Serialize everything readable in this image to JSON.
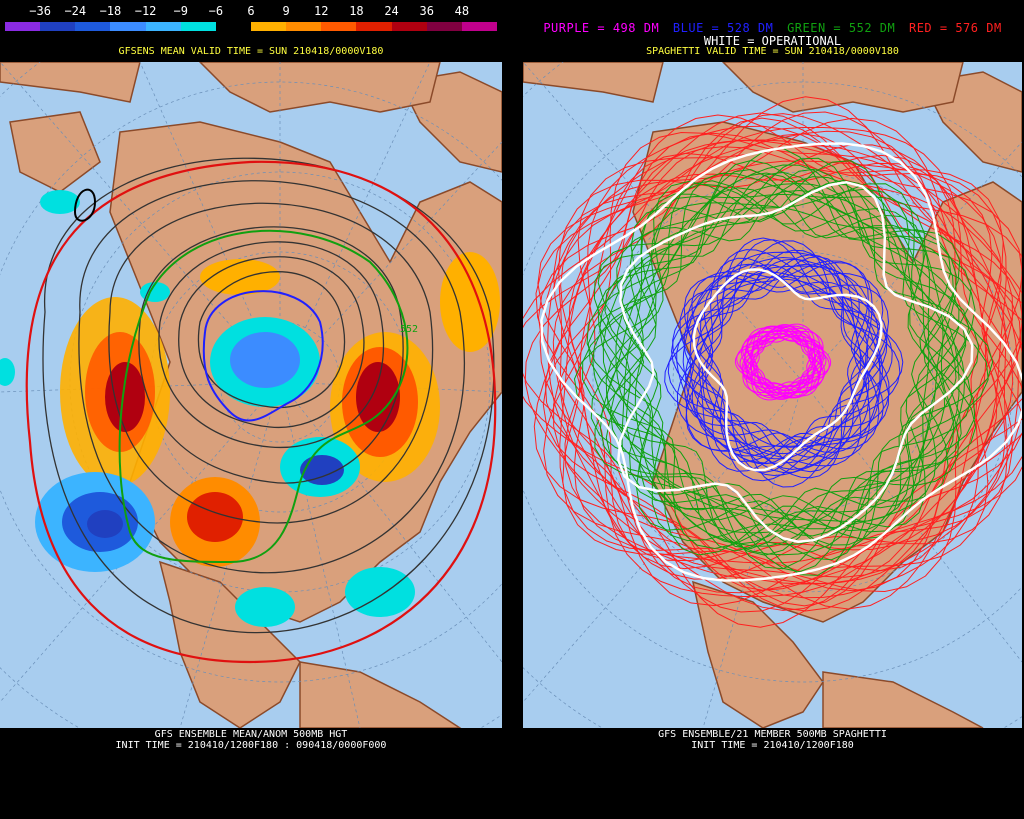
{
  "left": {
    "colorbar": {
      "labels": [
        "−36",
        "−24",
        "−18",
        "−12",
        "−9",
        "−6",
        "6",
        "9",
        "12",
        "18",
        "24",
        "36",
        "48"
      ],
      "colors": [
        "#8a2be2",
        "#2040c0",
        "#1e5adc",
        "#3c8cff",
        "#3cb4ff",
        "#00e0e0",
        "#000000",
        "#ffb000",
        "#ff8c00",
        "#ff5a00",
        "#e02000",
        "#b00010",
        "#800040",
        "#c0008c"
      ]
    },
    "title": "GFSENS MEAN VALID TIME = SUN 210418/0000V180",
    "footer_line1": "GFS ENSEMBLE MEAN/ANOM 500MB HGT",
    "footer_line2": "INIT TIME = 210410/1200F180 : 090418/0000F000",
    "contour_label": "552"
  },
  "right": {
    "legend": {
      "purple": "PURPLE = 498 DM",
      "blue": "BLUE = 528 DM",
      "green": "GREEN = 552 DM",
      "red": "RED = 576 DM",
      "white": "WHITE = OPERATIONAL"
    },
    "title": "SPAGHETTI VALID TIME = SUN 210418/0000V180",
    "footer_line1": "GFS ENSEMBLE/21 MEMBER 500MB SPAGHETTI",
    "footer_line2": "INIT TIME = 210410/1200F180"
  },
  "colors": {
    "ocean": "#a8cdef",
    "land": "#d9a07c",
    "coast": "#8b4a2a",
    "title_yellow": "#ffff40",
    "purple": "#ff00ff",
    "blue": "#2020ff",
    "green": "#10a010",
    "red": "#ff2020",
    "white": "#ffffff"
  }
}
